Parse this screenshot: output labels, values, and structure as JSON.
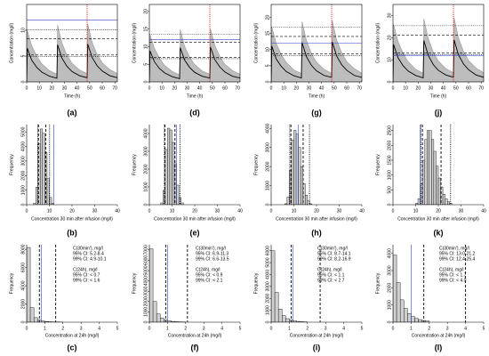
{
  "chart_data": [
    {
      "type": "line",
      "label": "(a)",
      "xlabel": "Time (h)",
      "ylabel": "Concentration (mg/l)",
      "xlim": [
        0,
        72
      ],
      "xticks": [
        0,
        10,
        20,
        30,
        40,
        50,
        60,
        70
      ],
      "ylim": [
        0,
        15
      ],
      "yticks": [
        0,
        5,
        10
      ],
      "x": [
        0,
        0.5,
        4,
        8,
        12,
        18,
        24,
        24.5,
        28,
        32,
        36,
        42,
        48,
        48.5,
        52,
        56,
        60,
        66,
        72
      ],
      "series": [
        {
          "color": "#999999",
          "fill": true,
          "values": [
            0,
            10,
            7,
            5,
            3.5,
            2.2,
            1.5,
            11,
            7.5,
            5.2,
            3.6,
            2.3,
            1.6,
            11.2,
            7.6,
            5.3,
            3.7,
            2.4,
            1.6
          ]
        },
        {
          "color": "#000000",
          "fill": false,
          "values": [
            0,
            6.5,
            4.2,
            2.8,
            1.9,
            1.1,
            0.7,
            7.2,
            4.6,
            3.0,
            2.0,
            1.2,
            0.8,
            7.3,
            4.7,
            3.1,
            2.1,
            1.2,
            0.8
          ]
        }
      ],
      "hlines": [
        {
          "value": 8.4,
          "color": "#000000",
          "dash": "dashed"
        },
        {
          "value": 5.2,
          "color": "#000000",
          "dash": "dashed"
        },
        {
          "value": 10.1,
          "color": "#000000",
          "dash": "dotted"
        },
        {
          "value": 4.9,
          "color": "#000000",
          "dash": "dotted"
        },
        {
          "value": 12,
          "color": "#3344cc",
          "dash": "solid"
        }
      ],
      "vlines": [
        {
          "value": 48,
          "color": "#dd0000",
          "dash": "dotted"
        }
      ]
    },
    {
      "type": "line",
      "label": "(d)",
      "xlabel": "Time (h)",
      "ylabel": "Concentration (mg/l)",
      "xlim": [
        0,
        72
      ],
      "xticks": [
        0,
        10,
        20,
        30,
        40,
        50,
        60,
        70
      ],
      "ylim": [
        0,
        22
      ],
      "yticks": [
        0,
        5,
        10,
        15,
        20
      ],
      "x": [
        0,
        0.5,
        4,
        8,
        12,
        18,
        24,
        24.5,
        28,
        32,
        36,
        42,
        48,
        48.5,
        52,
        56,
        60,
        66,
        72
      ],
      "series": [
        {
          "color": "#999999",
          "fill": true,
          "values": [
            0,
            13.5,
            9.5,
            6.8,
            4.7,
            3.0,
            2.0,
            14.9,
            10.1,
            7.0,
            4.9,
            3.1,
            2.2,
            15.1,
            10.3,
            7.2,
            5.0,
            3.2,
            2.2
          ]
        },
        {
          "color": "#000000",
          "fill": false,
          "values": [
            0,
            8.8,
            5.7,
            3.8,
            2.6,
            1.5,
            0.9,
            9.7,
            6.2,
            4.1,
            2.7,
            1.6,
            1.1,
            9.9,
            6.3,
            4.2,
            2.8,
            1.6,
            1.1
          ]
        }
      ],
      "hlines": [
        {
          "value": 11.3,
          "color": "#000000",
          "dash": "dashed"
        },
        {
          "value": 6.9,
          "color": "#000000",
          "dash": "dashed"
        },
        {
          "value": 13.5,
          "color": "#000000",
          "dash": "dotted"
        },
        {
          "value": 6.6,
          "color": "#000000",
          "dash": "dotted"
        },
        {
          "value": 12,
          "color": "#3344cc",
          "dash": "solid"
        }
      ],
      "vlines": [
        {
          "value": 48,
          "color": "#dd0000",
          "dash": "dotted"
        }
      ]
    },
    {
      "type": "line",
      "label": "(g)",
      "xlabel": "Time (h)",
      "ylabel": "Concentration (mg/l)",
      "xlim": [
        0,
        72
      ],
      "xticks": [
        0,
        10,
        20,
        30,
        40,
        50,
        60,
        70
      ],
      "ylim": [
        0,
        24
      ],
      "yticks": [
        0,
        5,
        10,
        15,
        20
      ],
      "x": [
        0,
        0.5,
        4,
        8,
        12,
        18,
        24,
        24.5,
        28,
        32,
        36,
        42,
        48,
        48.5,
        52,
        56,
        60,
        66,
        72
      ],
      "series": [
        {
          "color": "#999999",
          "fill": true,
          "values": [
            0,
            17,
            11.9,
            8.5,
            6.0,
            3.7,
            2.6,
            18.7,
            12.8,
            8.8,
            6.1,
            3.9,
            2.7,
            19,
            12.9,
            9.0,
            6.3,
            4.1,
            2.7
          ]
        },
        {
          "color": "#000000",
          "fill": false,
          "values": [
            0,
            11.1,
            7.1,
            4.8,
            3.2,
            1.9,
            1.2,
            12.2,
            7.8,
            5.1,
            3.4,
            2.0,
            1.4,
            12.4,
            8.0,
            5.3,
            3.6,
            2.0,
            1.4
          ]
        }
      ],
      "hlines": [
        {
          "value": 14.1,
          "color": "#000000",
          "dash": "dashed"
        },
        {
          "value": 8.7,
          "color": "#000000",
          "dash": "dashed"
        },
        {
          "value": 16.9,
          "color": "#000000",
          "dash": "dotted"
        },
        {
          "value": 8.2,
          "color": "#000000",
          "dash": "dotted"
        },
        {
          "value": 12,
          "color": "#3344cc",
          "dash": "solid"
        }
      ],
      "vlines": [
        {
          "value": 48,
          "color": "#dd0000",
          "dash": "dotted"
        }
      ]
    },
    {
      "type": "line",
      "label": "(j)",
      "xlabel": "Time (h)",
      "ylabel": "Concentration (mg/l)",
      "xlim": [
        0,
        72
      ],
      "xticks": [
        0,
        10,
        20,
        30,
        40,
        50,
        60,
        70
      ],
      "ylim": [
        0,
        35
      ],
      "yticks": [
        0,
        10,
        20,
        30
      ],
      "x": [
        0,
        0.5,
        4,
        8,
        12,
        18,
        24,
        24.5,
        28,
        32,
        36,
        42,
        48,
        48.5,
        52,
        56,
        60,
        66,
        72
      ],
      "series": [
        {
          "color": "#999999",
          "fill": true,
          "values": [
            0,
            26,
            18.2,
            13,
            9.1,
            5.7,
            3.9,
            28.6,
            19.5,
            13.5,
            9.4,
            6,
            4.2,
            29.1,
            19.8,
            13.8,
            9.6,
            6.2,
            4.2
          ]
        },
        {
          "color": "#000000",
          "fill": false,
          "values": [
            0,
            16.9,
            10.9,
            7.3,
            4.9,
            2.9,
            1.8,
            18.7,
            12,
            7.8,
            5.2,
            3.1,
            2.1,
            19,
            12.2,
            8.1,
            5.5,
            3.1,
            2.1
          ]
        }
      ],
      "hlines": [
        {
          "value": 21.2,
          "color": "#000000",
          "dash": "dashed"
        },
        {
          "value": 13.0,
          "color": "#000000",
          "dash": "dashed"
        },
        {
          "value": 25.4,
          "color": "#000000",
          "dash": "dotted"
        },
        {
          "value": 12.4,
          "color": "#000000",
          "dash": "dotted"
        },
        {
          "value": 12,
          "color": "#3344cc",
          "dash": "solid"
        }
      ],
      "vlines": [
        {
          "value": 48,
          "color": "#dd0000",
          "dash": "dotted"
        }
      ]
    },
    {
      "type": "histogram",
      "label": "(b)",
      "xlabel": "Concentration 30 min after infusion (mg/l)",
      "ylabel": "Frequency",
      "xlim": [
        0,
        40
      ],
      "xticks": [
        0,
        10,
        20,
        30,
        40
      ],
      "ylim": [
        0,
        5500
      ],
      "yticks": [
        0,
        1000,
        2000,
        3000,
        4000,
        5000
      ],
      "bins": [
        3,
        4,
        5,
        6,
        7,
        8,
        9,
        10,
        11,
        12
      ],
      "counts": [
        100,
        1200,
        4200,
        5200,
        4900,
        3600,
        1800,
        500,
        100
      ],
      "vlines": [
        {
          "value": 5.2,
          "color": "#000000",
          "dash": "dashed"
        },
        {
          "value": 8.4,
          "color": "#000000",
          "dash": "dashed"
        },
        {
          "value": 4.9,
          "color": "#000000",
          "dash": "dotted"
        },
        {
          "value": 10.1,
          "color": "#000000",
          "dash": "dotted"
        },
        {
          "value": 12,
          "color": "#3344cc",
          "dash": "solid"
        }
      ]
    },
    {
      "type": "histogram",
      "label": "(e)",
      "xlabel": "Concentration 30 min after infusion (mg/l)",
      "ylabel": "Frequency",
      "xlim": [
        0,
        40
      ],
      "xticks": [
        0,
        10,
        20,
        30,
        40
      ],
      "ylim": [
        0,
        4500
      ],
      "yticks": [
        0,
        1000,
        2000,
        3000,
        4000
      ],
      "bins": [
        5,
        6,
        7,
        8,
        9,
        10,
        11,
        12,
        13,
        14,
        15
      ],
      "counts": [
        100,
        800,
        3100,
        4300,
        4200,
        3500,
        2300,
        1100,
        400,
        100
      ],
      "vlines": [
        {
          "value": 6.9,
          "color": "#000000",
          "dash": "dashed"
        },
        {
          "value": 11.3,
          "color": "#000000",
          "dash": "dashed"
        },
        {
          "value": 6.6,
          "color": "#000000",
          "dash": "dotted"
        },
        {
          "value": 13.5,
          "color": "#000000",
          "dash": "dotted"
        },
        {
          "value": 12,
          "color": "#3344cc",
          "dash": "solid"
        }
      ]
    },
    {
      "type": "histogram",
      "label": "(h)",
      "xlabel": "Concentration 30 min after infusion (mg/l)",
      "ylabel": "Frequency",
      "xlim": [
        0,
        40
      ],
      "xticks": [
        0,
        10,
        20,
        30,
        40
      ],
      "ylim": [
        0,
        4200
      ],
      "yticks": [
        0,
        1000,
        2000,
        3000,
        4000
      ],
      "bins": [
        6,
        7,
        8,
        9,
        10,
        11,
        12,
        13,
        14,
        15,
        16,
        17,
        18
      ],
      "counts": [
        50,
        400,
        1800,
        3400,
        3900,
        3700,
        3000,
        2000,
        1100,
        500,
        200,
        50
      ],
      "vlines": [
        {
          "value": 8.7,
          "color": "#000000",
          "dash": "dashed"
        },
        {
          "value": 14.1,
          "color": "#000000",
          "dash": "dashed"
        },
        {
          "value": 8.2,
          "color": "#000000",
          "dash": "dotted"
        },
        {
          "value": 16.9,
          "color": "#000000",
          "dash": "dotted"
        },
        {
          "value": 12,
          "color": "#3344cc",
          "dash": "solid"
        }
      ]
    },
    {
      "type": "histogram",
      "label": "(k)",
      "xlabel": "Concentration 30 min after infusion (mg/l)",
      "ylabel": "Frequency",
      "xlim": [
        0,
        40
      ],
      "xticks": [
        0,
        10,
        20,
        30,
        40
      ],
      "ylim": [
        0,
        2700
      ],
      "yticks": [
        0,
        500,
        1000,
        1500,
        2000,
        2500
      ],
      "bins": [
        10,
        11,
        12,
        13,
        14,
        15,
        16,
        17,
        18,
        19,
        20,
        21,
        22,
        23,
        24,
        25,
        26
      ],
      "counts": [
        50,
        200,
        700,
        1500,
        2200,
        2500,
        2500,
        2200,
        1800,
        1300,
        900,
        600,
        350,
        200,
        100,
        50
      ],
      "vlines": [
        {
          "value": 13.0,
          "color": "#000000",
          "dash": "dashed"
        },
        {
          "value": 21.2,
          "color": "#000000",
          "dash": "dashed"
        },
        {
          "value": 12.4,
          "color": "#000000",
          "dash": "dotted"
        },
        {
          "value": 25.4,
          "color": "#000000",
          "dash": "dotted"
        },
        {
          "value": 12,
          "color": "#3344cc",
          "dash": "solid"
        }
      ]
    },
    {
      "type": "histogram",
      "label": "(c)",
      "xlabel": "Concentration at 24h (mg/l)",
      "ylabel": "Frequency",
      "xlim": [
        0,
        5
      ],
      "xticks": [
        0,
        1,
        2,
        3,
        4,
        5
      ],
      "ylim": [
        0,
        8500
      ],
      "yticks": [
        0,
        2000,
        4000,
        6000,
        8000
      ],
      "bins": [
        0,
        0.2,
        0.4,
        0.6,
        0.8,
        1.0,
        1.2,
        1.4,
        1.6,
        1.8,
        2.0
      ],
      "counts": [
        8200,
        1600,
        500,
        250,
        130,
        80,
        50,
        30,
        20,
        10
      ],
      "vlines": [
        {
          "value": 0.8,
          "color": "#3344cc",
          "dash": "solid"
        },
        {
          "value": 0.7,
          "color": "#000000",
          "dash": "dashed"
        },
        {
          "value": 1.6,
          "color": "#000000",
          "dash": "dashed"
        }
      ],
      "annotations": [
        "C(30min'), mg/l",
        "95% CI: 5.2-8.4",
        "99% CI: 4.9-10.1",
        "",
        "C(24h), mg/l",
        "95% CI: < 0.7",
        "99% CI: < 1.6"
      ]
    },
    {
      "type": "histogram",
      "label": "(f)",
      "xlabel": "Concentration at 24h (mg/l)",
      "ylabel": "Frequency",
      "xlim": [
        0,
        5
      ],
      "xticks": [
        0,
        1,
        2,
        3,
        4,
        5
      ],
      "ylim": [
        0,
        7500
      ],
      "yticks": [
        0,
        1000,
        2000,
        3000,
        4000,
        5000,
        6000,
        7000
      ],
      "bins": [
        0,
        0.2,
        0.4,
        0.6,
        0.8,
        1.0,
        1.2,
        1.4,
        1.6,
        1.8,
        2.0
      ],
      "counts": [
        7100,
        2000,
        800,
        400,
        220,
        130,
        80,
        50,
        30,
        20
      ],
      "vlines": [
        {
          "value": 1.0,
          "color": "#3344cc",
          "dash": "solid"
        },
        {
          "value": 0.9,
          "color": "#000000",
          "dash": "dashed"
        },
        {
          "value": 2.1,
          "color": "#000000",
          "dash": "dashed"
        }
      ],
      "annotations": [
        "C(30min'), mg/l",
        "95% CI: 6.9-11.3",
        "99% CI: 6.6-13.5",
        "",
        "C(24h), mg/l",
        "95% CI: < 0.9",
        "99% CI: < 2.1"
      ]
    },
    {
      "type": "histogram",
      "label": "(i)",
      "xlabel": "Concentration at 24h (mg/l)",
      "ylabel": "Frequency",
      "xlim": [
        0,
        5
      ],
      "xticks": [
        0,
        1,
        2,
        3,
        4,
        5
      ],
      "ylim": [
        0,
        6500
      ],
      "yticks": [
        0,
        1000,
        2000,
        3000,
        4000,
        5000,
        6000
      ],
      "bins": [
        0,
        0.2,
        0.4,
        0.6,
        0.8,
        1.0,
        1.2,
        1.4,
        1.6,
        1.8,
        2.0
      ],
      "counts": [
        6000,
        2500,
        1100,
        550,
        300,
        180,
        110,
        70,
        40,
        25
      ],
      "vlines": [
        {
          "value": 1.2,
          "color": "#3344cc",
          "dash": "solid"
        },
        {
          "value": 1.1,
          "color": "#000000",
          "dash": "dashed"
        },
        {
          "value": 2.7,
          "color": "#000000",
          "dash": "dashed"
        }
      ],
      "annotations": [
        "C(30min'), mg/l",
        "95% CI: 8.7-14.1",
        "99% CI: 8.2-16.9",
        "",
        "C(24h), mg/l",
        "95% CI: < 1.1",
        "99% CI: < 2.7"
      ]
    },
    {
      "type": "histogram",
      "label": "(l)",
      "xlabel": "Concentration at 24h (mg/l)",
      "ylabel": "Frequency",
      "xlim": [
        0,
        5
      ],
      "xticks": [
        0,
        1,
        2,
        3,
        4,
        5
      ],
      "ylim": [
        0,
        4500
      ],
      "yticks": [
        0,
        1000,
        2000,
        3000,
        4000
      ],
      "bins": [
        0,
        0.2,
        0.4,
        0.6,
        0.8,
        1.0,
        1.2,
        1.4,
        1.6,
        1.8,
        2.0
      ],
      "counts": [
        3900,
        2300,
        1300,
        800,
        500,
        330,
        220,
        150,
        100,
        70
      ],
      "vlines": [
        {
          "value": 1.0,
          "color": "#3344cc",
          "dash": "solid"
        },
        {
          "value": 1.7,
          "color": "#000000",
          "dash": "dashed"
        },
        {
          "value": 4.0,
          "color": "#000000",
          "dash": "dashed"
        }
      ],
      "annotations": [
        "C(30min'), mg/l",
        "95% CI: 13.0-21.2",
        "99% CI: 12.4-25.4",
        "",
        "C(24h), mg/l",
        "95% CI: < 1.7",
        "99% CI: < 4.0"
      ]
    }
  ]
}
